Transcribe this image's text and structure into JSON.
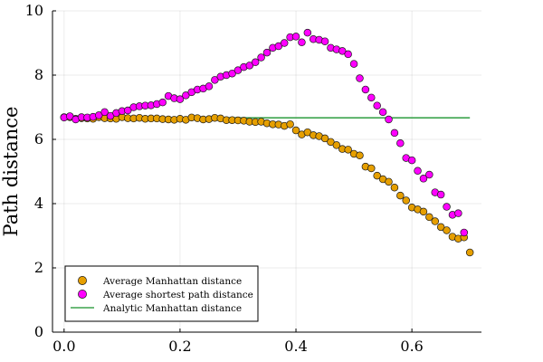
{
  "chart_data": {
    "type": "scatter",
    "title": "",
    "xlabel": "",
    "ylabel": "Path distance",
    "xlim": [
      -0.02,
      0.72
    ],
    "ylim": [
      0,
      10
    ],
    "x_ticks": [
      0.0,
      0.2,
      0.4,
      0.6
    ],
    "x_tick_labels": [
      "0.0",
      "0.2",
      "0.4",
      "0.6"
    ],
    "y_ticks": [
      0,
      2,
      4,
      6,
      8,
      10
    ],
    "y_tick_labels": [
      "0",
      "2",
      "4",
      "6",
      "8",
      "10"
    ],
    "grid": true,
    "legend_position": "bottom-left",
    "series": [
      {
        "name": "Average Manhattan distance",
        "kind": "marker",
        "color": "#E69F00",
        "x": [
          0.0,
          0.01,
          0.02,
          0.03,
          0.04,
          0.05,
          0.06,
          0.07,
          0.08,
          0.09,
          0.1,
          0.11,
          0.12,
          0.13,
          0.14,
          0.15,
          0.16,
          0.17,
          0.18,
          0.19,
          0.2,
          0.21,
          0.22,
          0.23,
          0.24,
          0.25,
          0.26,
          0.27,
          0.28,
          0.29,
          0.3,
          0.31,
          0.32,
          0.33,
          0.34,
          0.35,
          0.36,
          0.37,
          0.38,
          0.39,
          0.4,
          0.41,
          0.42,
          0.43,
          0.44,
          0.45,
          0.46,
          0.47,
          0.48,
          0.49,
          0.5,
          0.51,
          0.52,
          0.53,
          0.54,
          0.55,
          0.56,
          0.57,
          0.58,
          0.59,
          0.6,
          0.61,
          0.62,
          0.63,
          0.64,
          0.65,
          0.66,
          0.67,
          0.68,
          0.69,
          0.7
        ],
        "y": [
          6.69,
          6.69,
          6.64,
          6.66,
          6.65,
          6.64,
          6.69,
          6.66,
          6.65,
          6.64,
          6.69,
          6.66,
          6.65,
          6.67,
          6.64,
          6.65,
          6.65,
          6.63,
          6.62,
          6.61,
          6.64,
          6.61,
          6.68,
          6.66,
          6.62,
          6.63,
          6.67,
          6.65,
          6.6,
          6.6,
          6.59,
          6.58,
          6.55,
          6.54,
          6.55,
          6.5,
          6.47,
          6.46,
          6.42,
          6.47,
          6.28,
          6.15,
          6.22,
          6.13,
          6.1,
          6.03,
          5.92,
          5.82,
          5.7,
          5.68,
          5.55,
          5.5,
          5.15,
          5.1,
          4.87,
          4.76,
          4.68,
          4.5,
          4.25,
          4.1,
          3.88,
          3.82,
          3.75,
          3.58,
          3.45,
          3.27,
          3.17,
          2.97,
          2.91,
          2.95,
          2.48
        ]
      },
      {
        "name": "Average shortest path distance",
        "kind": "marker",
        "color": "#FF00FF",
        "x": [
          0.0,
          0.01,
          0.02,
          0.03,
          0.04,
          0.05,
          0.06,
          0.07,
          0.08,
          0.09,
          0.1,
          0.11,
          0.12,
          0.13,
          0.14,
          0.15,
          0.16,
          0.17,
          0.18,
          0.19,
          0.2,
          0.21,
          0.22,
          0.23,
          0.24,
          0.25,
          0.26,
          0.27,
          0.28,
          0.29,
          0.3,
          0.31,
          0.32,
          0.33,
          0.34,
          0.35,
          0.36,
          0.37,
          0.38,
          0.39,
          0.4,
          0.41,
          0.42,
          0.43,
          0.44,
          0.45,
          0.46,
          0.47,
          0.48,
          0.49,
          0.5,
          0.51,
          0.52,
          0.53,
          0.54,
          0.55,
          0.56,
          0.57,
          0.58,
          0.59,
          0.6,
          0.61,
          0.62,
          0.63,
          0.64,
          0.65,
          0.66,
          0.67,
          0.68,
          0.69,
          0.7
        ],
        "y": [
          6.68,
          6.72,
          6.62,
          6.69,
          6.68,
          6.7,
          6.75,
          6.85,
          6.73,
          6.82,
          6.88,
          6.9,
          7.0,
          7.03,
          7.05,
          7.06,
          7.1,
          7.15,
          7.35,
          7.28,
          7.25,
          7.37,
          7.47,
          7.55,
          7.58,
          7.65,
          7.85,
          7.95,
          8.0,
          8.05,
          8.15,
          8.25,
          8.3,
          8.4,
          8.55,
          8.7,
          8.85,
          8.9,
          9.0,
          9.18,
          9.2,
          9.02,
          9.32,
          9.12,
          9.1,
          9.05,
          8.85,
          8.8,
          8.75,
          8.65,
          8.35,
          7.9,
          7.55,
          7.3,
          7.05,
          6.85,
          6.62,
          6.2,
          5.88,
          5.42,
          5.35,
          5.02,
          4.78,
          4.9,
          4.35,
          4.28,
          3.9,
          3.65,
          3.7,
          3.1,
          null
        ]
      },
      {
        "name": "Analytic Manhattan distance",
        "kind": "line",
        "color": "#3DA44D",
        "x": [
          0.0,
          0.7
        ],
        "y": [
          6.67,
          6.67
        ]
      }
    ]
  }
}
